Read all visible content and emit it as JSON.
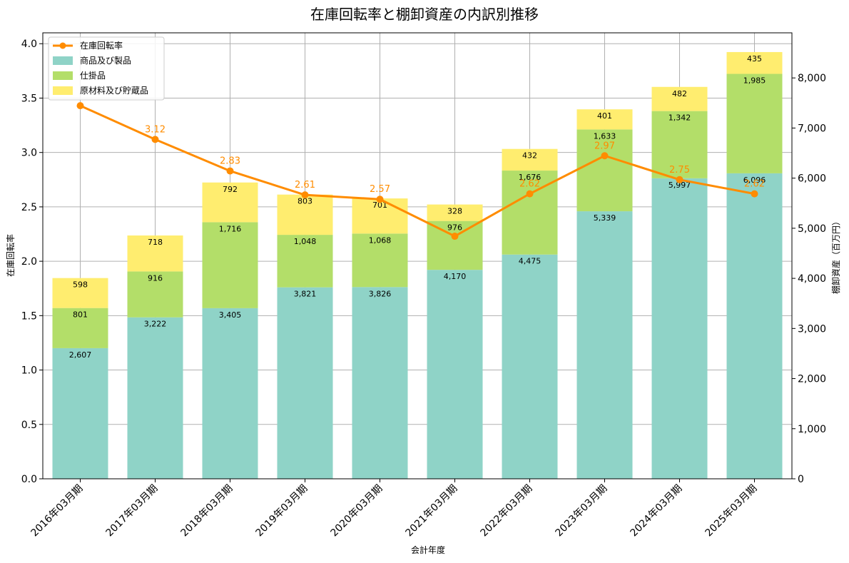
{
  "chart_data": {
    "type": "bar",
    "title": "在庫回転率と棚卸資産の内訳別推移",
    "xlabel": "会計年度",
    "ylabel_left": "在庫回転率",
    "ylabel_right": "棚卸資産（百万円）",
    "categories": [
      "2016年03月期",
      "2017年03月期",
      "2018年03月期",
      "2019年03月期",
      "2020年03月期",
      "2021年03月期",
      "2022年03月期",
      "2023年03月期",
      "2024年03月期",
      "2025年03月期"
    ],
    "series": [
      {
        "name": "商品及び製品",
        "type": "bar",
        "axis": "right",
        "color": "#8fd3c7",
        "values": [
          2607,
          3222,
          3405,
          3821,
          3826,
          4170,
          4475,
          5339,
          5997,
          6096
        ]
      },
      {
        "name": "仕掛品",
        "type": "bar",
        "axis": "right",
        "color": "#b3de69",
        "values": [
          801,
          916,
          1716,
          1048,
          1068,
          976,
          1676,
          1633,
          1342,
          1985
        ]
      },
      {
        "name": "原材料及び貯蔵品",
        "type": "bar",
        "axis": "right",
        "color": "#ffed6f",
        "values": [
          598,
          718,
          792,
          803,
          701,
          328,
          432,
          401,
          482,
          435
        ]
      },
      {
        "name": "在庫回転率",
        "type": "line",
        "axis": "left",
        "color": "#ff8c00",
        "values": [
          3.43,
          3.12,
          2.83,
          2.61,
          2.57,
          2.23,
          2.62,
          2.97,
          2.75,
          2.62
        ]
      }
    ],
    "value_labels_right": [
      [
        "2,607",
        "3,222",
        "3,405",
        "3,821",
        "3,826",
        "4,170",
        "4,475",
        "5,339",
        "5,997",
        "6,096"
      ],
      [
        "801",
        "916",
        "1,716",
        "1,048",
        "1,068",
        "976",
        "1,676",
        "1,633",
        "1,342",
        "1,985"
      ],
      [
        "598",
        "718",
        "792",
        "803",
        "701",
        "328",
        "432",
        "401",
        "482",
        "435"
      ]
    ],
    "line_labels": [
      "",
      "3.12",
      "2.83",
      "2.61",
      "2.57",
      "",
      "2.62",
      "2.97",
      "2.75",
      "2.62"
    ],
    "ylim_left": [
      0,
      4.1
    ],
    "ylim_right": [
      0,
      8900
    ],
    "yticks_left": [
      "0.0",
      "0.5",
      "1.0",
      "1.5",
      "2.0",
      "2.5",
      "3.0",
      "3.5",
      "4.0"
    ],
    "yticks_right": [
      "0",
      "1,000",
      "2,000",
      "3,000",
      "4,000",
      "5,000",
      "6,000",
      "7,000",
      "8,000"
    ],
    "grid": true,
    "legend_position": "top-left"
  }
}
